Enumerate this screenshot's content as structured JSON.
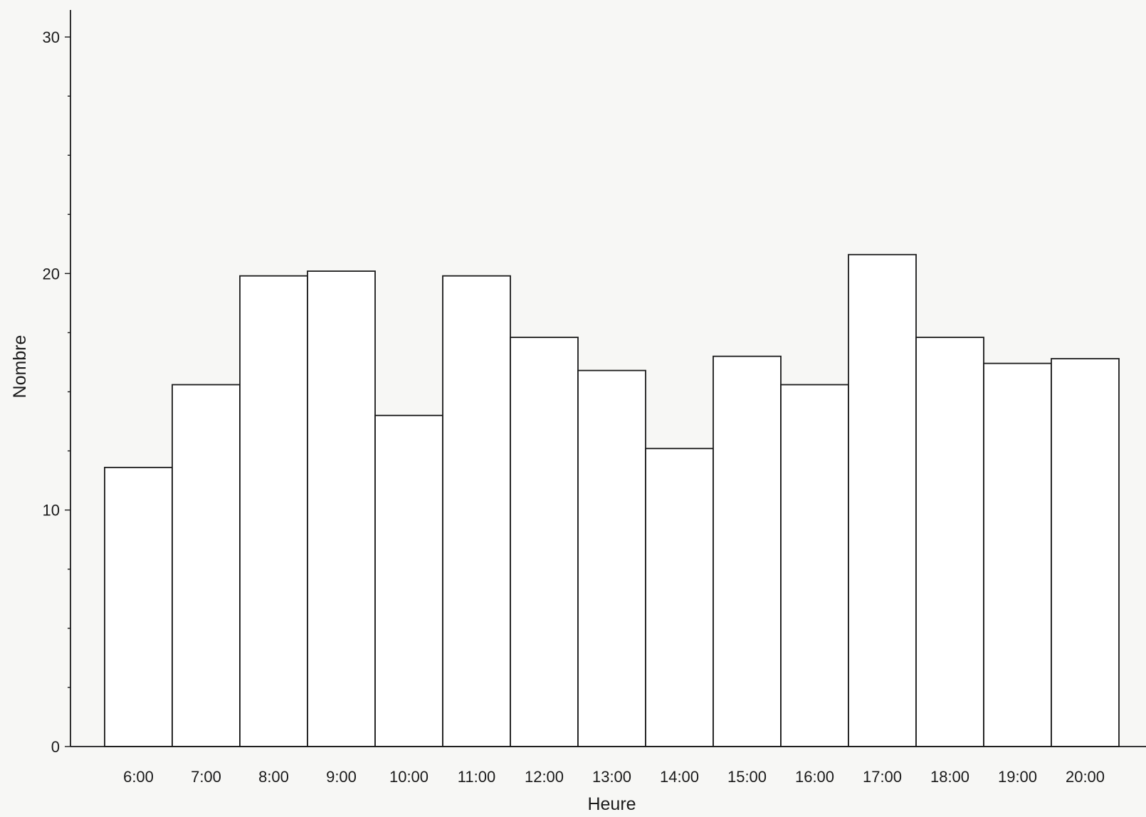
{
  "chart_data": {
    "type": "bar",
    "title": "",
    "xlabel": "Heure",
    "ylabel": "Nombre",
    "categories": [
      "6:00",
      "7:00",
      "8:00",
      "9:00",
      "10:00",
      "11:00",
      "12:00",
      "13:00",
      "14:00",
      "15:00",
      "16:00",
      "17:00",
      "18:00",
      "19:00",
      "20:00"
    ],
    "values": [
      11.8,
      15.3,
      19.9,
      20.1,
      14.0,
      19.9,
      17.3,
      15.9,
      12.6,
      16.5,
      15.3,
      20.8,
      17.3,
      16.2,
      16.4
    ],
    "ylim": [
      0,
      30
    ],
    "yticks": [
      0,
      10,
      20,
      30
    ],
    "grid": false,
    "legend": "none",
    "colors": {
      "bar_fill": "#ffffff",
      "bar_stroke": "#1a1a1a",
      "axis": "#1a1a1a"
    }
  }
}
